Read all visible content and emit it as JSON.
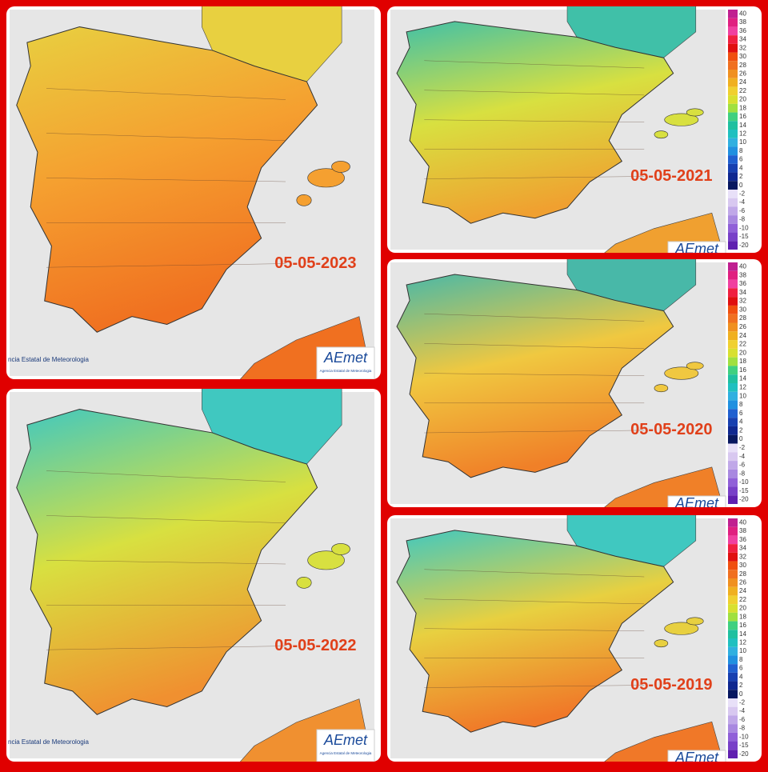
{
  "panels": [
    {
      "date": "05-05-2023",
      "credit": "ncia Estatal de Meteorologia",
      "logo": "AEmet",
      "logo_sub": "Agencia Estatal de Meteorologia",
      "gradient": [
        "#e8d040",
        "#f5a030",
        "#f07020"
      ],
      "legend": false
    },
    {
      "date": "05-05-2021",
      "logo": "AEmet",
      "gradient": [
        "#40c0a8",
        "#d8e040",
        "#f0a030"
      ],
      "legend": true
    },
    {
      "date": "05-05-2020",
      "logo": "AEmet",
      "gradient": [
        "#48b8a8",
        "#f0c840",
        "#f08028"
      ],
      "legend": true
    },
    {
      "date": "05-05-2022",
      "credit": "ncia Estatal de Meteorologia",
      "logo": "AEmet",
      "logo_sub": "Agencia Estatal de Meteorologia",
      "gradient": [
        "#40c8c0",
        "#d8e040",
        "#f09030"
      ],
      "legend": false
    },
    {
      "date": "05-05-2019",
      "logo": "AEmet",
      "gradient": [
        "#40c8c0",
        "#e8d040",
        "#f07828"
      ],
      "legend": true
    }
  ],
  "legend": {
    "ticks": [
      40,
      38,
      36,
      34,
      32,
      30,
      28,
      26,
      24,
      22,
      20,
      18,
      16,
      14,
      12,
      10,
      8,
      6,
      4,
      2,
      0,
      -2,
      -4,
      -6,
      -8,
      -10,
      -15,
      -20
    ],
    "colors": [
      "#c02090",
      "#e02080",
      "#f040a0",
      "#f02040",
      "#e01010",
      "#f05010",
      "#f07020",
      "#f09020",
      "#f0b020",
      "#f0d030",
      "#d8e030",
      "#a0e040",
      "#40d080",
      "#20c0a0",
      "#20c0c0",
      "#30b0e0",
      "#2090e0",
      "#2060d0",
      "#1840b0",
      "#102890",
      "#081860",
      "#e8e0f8",
      "#d8c8f0",
      "#c0a8e8",
      "#a888e0",
      "#9060d8",
      "#7840c8",
      "#6020b0"
    ]
  }
}
